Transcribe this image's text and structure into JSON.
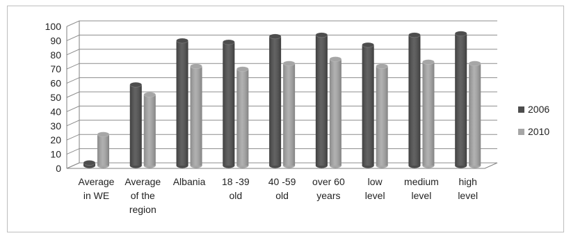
{
  "chart_data": {
    "type": "bar",
    "title": "",
    "xlabel": "",
    "ylabel": "",
    "ylim": [
      0,
      100
    ],
    "yticks": [
      0,
      10,
      20,
      30,
      40,
      50,
      60,
      70,
      80,
      90,
      100
    ],
    "grid": true,
    "legend_position": "right",
    "categories": [
      [
        "Average",
        "in WE"
      ],
      [
        "Average",
        "of the",
        "region"
      ],
      [
        "Albania"
      ],
      [
        "18 -39",
        "old"
      ],
      [
        "40 -59",
        "old"
      ],
      [
        "over 60",
        "years"
      ],
      [
        "low",
        "level"
      ],
      [
        "medium",
        "level"
      ],
      [
        "high",
        "level"
      ]
    ],
    "series": [
      {
        "name": "2006",
        "color": "#4d4d4d",
        "values": [
          2,
          57,
          88,
          87,
          91,
          92,
          85,
          92,
          93
        ]
      },
      {
        "name": "2010",
        "color": "#a6a6a6",
        "values": [
          22,
          50,
          70,
          68,
          72,
          75,
          70,
          73,
          72
        ]
      }
    ]
  }
}
